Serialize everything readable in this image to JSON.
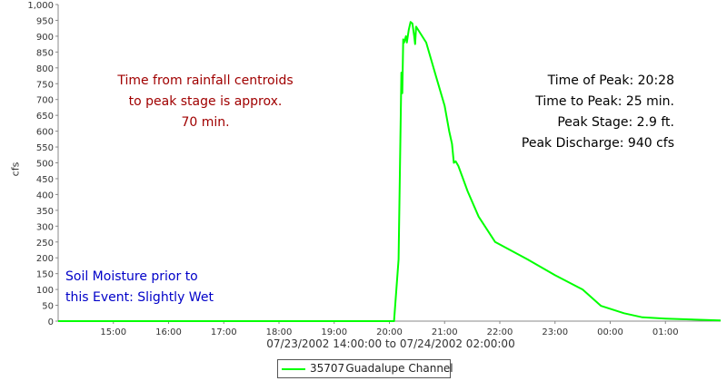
{
  "chart_data": {
    "type": "line",
    "xlabel": "07/23/2002 14:00:00 to 07/24/2002 02:00:00",
    "ylabel": "cfs",
    "x_ticks": [
      "15:00",
      "16:00",
      "17:00",
      "18:00",
      "19:00",
      "20:00",
      "21:00",
      "22:00",
      "23:00",
      "00:00",
      "01:00"
    ],
    "y_ticks": [
      "0",
      "50",
      "100",
      "150",
      "200",
      "250",
      "300",
      "350",
      "400",
      "450",
      "500",
      "550",
      "600",
      "650",
      "700",
      "750",
      "800",
      "850",
      "900",
      "950",
      "1,000"
    ],
    "xlim": [
      "07/23/2002 14:00",
      "07/24/2002 02:00"
    ],
    "ylim": [
      0,
      1000
    ],
    "grid": false,
    "legend_position": "bottom-center",
    "series": [
      {
        "name": "35707 Guadalupe Channel",
        "color": "#00ff00",
        "points": [
          [
            "07/23/2002 14:00",
            0
          ],
          [
            "07/23/2002 20:05",
            0
          ],
          [
            "07/23/2002 20:10",
            195
          ],
          [
            "07/23/2002 20:13",
            785
          ],
          [
            "07/23/2002 20:14",
            720
          ],
          [
            "07/23/2002 20:15",
            890
          ],
          [
            "07/23/2002 20:16",
            880
          ],
          [
            "07/23/2002 20:18",
            900
          ],
          [
            "07/23/2002 20:19",
            880
          ],
          [
            "07/23/2002 20:21",
            920
          ],
          [
            "07/23/2002 20:23",
            945
          ],
          [
            "07/23/2002 20:25",
            940
          ],
          [
            "07/23/2002 20:27",
            900
          ],
          [
            "07/23/2002 20:28",
            875
          ],
          [
            "07/23/2002 20:29",
            930
          ],
          [
            "07/23/2002 20:40",
            880
          ],
          [
            "07/23/2002 20:50",
            780
          ],
          [
            "07/23/2002 21:00",
            680
          ],
          [
            "07/23/2002 21:05",
            600
          ],
          [
            "07/23/2002 21:08",
            560
          ],
          [
            "07/23/2002 21:10",
            500
          ],
          [
            "07/23/2002 21:12",
            505
          ],
          [
            "07/23/2002 21:15",
            490
          ],
          [
            "07/23/2002 21:25",
            410
          ],
          [
            "07/23/2002 21:37",
            330
          ],
          [
            "07/23/2002 21:55",
            250
          ],
          [
            "07/23/2002 22:30",
            195
          ],
          [
            "07/23/2002 23:00",
            145
          ],
          [
            "07/23/2002 23:30",
            100
          ],
          [
            "07/23/2002 23:50",
            48
          ],
          [
            "07/24/2002 00:15",
            25
          ],
          [
            "07/24/2002 00:35",
            12
          ],
          [
            "07/24/2002 01:00",
            8
          ],
          [
            "07/24/2002 02:00",
            2
          ]
        ]
      }
    ],
    "annotations": {
      "rainfall_lines": [
        "Time from rainfall centroids",
        "to peak stage is approx.",
        "70 min."
      ],
      "peak_lines": [
        "Time of Peak: 20:28",
        "Time to Peak: 25 min.",
        "Peak Stage: 2.9 ft.",
        "Peak Discharge: 940 cfs"
      ],
      "soil_lines": [
        "Soil Moisture prior to",
        "this Event: Slightly Wet"
      ]
    },
    "colors": {
      "series": "#00ff00",
      "rainfall_annotation": "#a00000",
      "peak_annotation": "#000000",
      "soil_annotation": "#0000c8"
    }
  },
  "legend": {
    "label_id": "35707",
    "label_name": "Guadalupe Channel"
  }
}
